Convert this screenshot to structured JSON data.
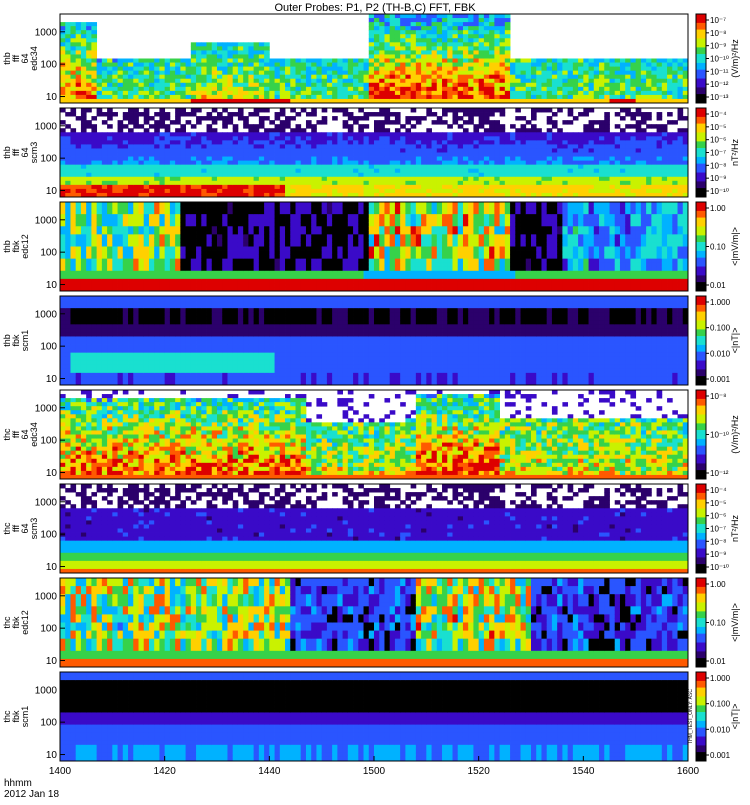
{
  "title": "Outer Probes: P1, P2 (TH-B,C) FFT, FBK",
  "x_axis": {
    "row_labels": [
      "hhmm",
      "2012 Jan 18"
    ],
    "ticks": [
      "1400",
      "1420",
      "1440",
      "1500",
      "1520",
      "1540",
      "1600"
    ],
    "range_minutes": [
      0,
      120
    ]
  },
  "colormap": [
    "#000000",
    "#2b006b",
    "#3a0ac8",
    "#2a55ff",
    "#00b2ff",
    "#19e0d0",
    "#36d24a",
    "#c9f200",
    "#ffd000",
    "#ff5a00",
    "#dd0000"
  ],
  "chart_data": [
    {
      "type": "heatmap",
      "probe": "thb",
      "ylabel": [
        "thb",
        "fff",
        "64",
        "edc34"
      ],
      "yticks": [
        "10",
        "100",
        "1000"
      ],
      "yscale": "log",
      "colorbar": {
        "label": "(V/m)²/Hz",
        "ticks": [
          "10⁻⁷",
          "10⁻⁸",
          "10⁻⁹",
          "10⁻¹⁰",
          "10⁻¹¹",
          "10⁻¹²",
          "10⁻¹³"
        ]
      },
      "dense_data_notes": "broadband bursts 1400-1407 and 1459-1526"
    },
    {
      "type": "heatmap",
      "probe": "thb",
      "ylabel": [
        "thb",
        "fff",
        "64",
        "scm3"
      ],
      "yticks": [
        "10",
        "100",
        "1000"
      ],
      "yscale": "log",
      "colorbar": {
        "label": "nT²/Hz",
        "ticks": [
          "10⁻⁴",
          "10⁻⁵",
          "10⁻⁶",
          "10⁻⁷",
          "10⁻⁸",
          "10⁻⁹",
          "10⁻¹⁰"
        ]
      }
    },
    {
      "type": "heatmap",
      "probe": "thb",
      "ylabel": [
        "thb",
        "fbk",
        "edc12"
      ],
      "yticks": [
        "10",
        "100",
        "1000"
      ],
      "yscale": "log",
      "colorbar": {
        "label": "<|mV/m|>",
        "ticks": [
          "1.00",
          "0.10",
          "0.01"
        ]
      }
    },
    {
      "type": "heatmap",
      "probe": "thb",
      "ylabel": [
        "thb",
        "fbk",
        "scm1"
      ],
      "yticks": [
        "10",
        "100",
        "1000"
      ],
      "yscale": "log",
      "colorbar": {
        "label": "<|nT|>",
        "ticks": [
          "1.000",
          "0.100",
          "0.010",
          "0.001"
        ]
      }
    },
    {
      "type": "heatmap",
      "probe": "thc",
      "ylabel": [
        "thc",
        "fff",
        "64",
        "edc34"
      ],
      "yticks": [
        "10",
        "100",
        "1000"
      ],
      "yscale": "log",
      "colorbar": {
        "label": "(V/m)²/Hz",
        "ticks": [
          "10⁻⁸",
          "10⁻¹⁰",
          "10⁻¹²"
        ]
      }
    },
    {
      "type": "heatmap",
      "probe": "thc",
      "ylabel": [
        "thc",
        "fff",
        "64",
        "scm3"
      ],
      "yticks": [
        "10",
        "100",
        "1000"
      ],
      "yscale": "log",
      "colorbar": {
        "label": "nT²/Hz",
        "ticks": [
          "10⁻⁴",
          "10⁻⁵",
          "10⁻⁶",
          "10⁻⁷",
          "10⁻⁸",
          "10⁻⁹",
          "10⁻¹⁰"
        ]
      }
    },
    {
      "type": "heatmap",
      "probe": "thc",
      "ylabel": [
        "thc",
        "fbk",
        "edc12"
      ],
      "yticks": [
        "10",
        "100",
        "1000"
      ],
      "yscale": "log",
      "colorbar": {
        "label": "<|mV/m|>",
        "ticks": [
          "1.00",
          "0.10",
          "0.01"
        ]
      }
    },
    {
      "type": "heatmap",
      "probe": "thc",
      "ylabel": [
        "thc",
        "fbk",
        "scm1"
      ],
      "yticks": [
        "10",
        "100",
        "1000"
      ],
      "yscale": "log",
      "colorbar": {
        "label": "<|nT|>",
        "ticks": [
          "1.000",
          "0.100",
          "0.010",
          "0.001"
        ]
      },
      "side_annotation": "THM_TEST_ONLY: ASC"
    }
  ]
}
